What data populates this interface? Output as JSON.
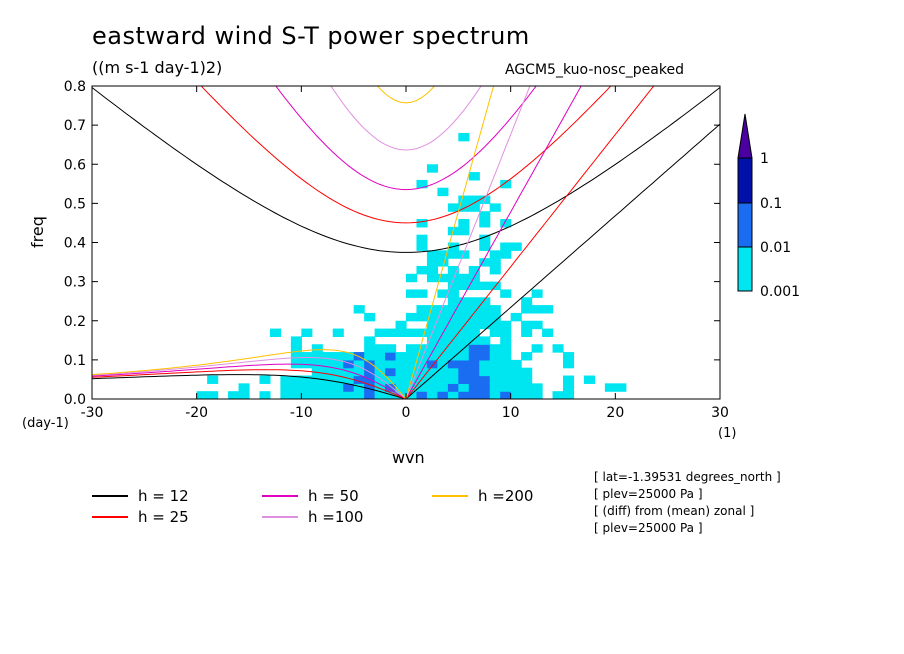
{
  "chart_data": {
    "type": "contour",
    "title": "eastward wind S-T power spectrum",
    "subtitle": "((m s-1 day-1)2)",
    "model_label": "AGCM5_kuo-nosc_peaked",
    "xlabel": "wvn",
    "ylabel": "freq",
    "x_unit": "(1)",
    "y_unit": "(day-1)",
    "xlim": [
      -30,
      30
    ],
    "ylim": [
      0,
      0.8
    ],
    "x_ticks": [
      -30,
      -20,
      -10,
      0,
      10,
      20,
      30
    ],
    "y_ticks": [
      0.0,
      0.1,
      0.2,
      0.3,
      0.4,
      0.5,
      0.6,
      0.7,
      0.8
    ],
    "x_tick_labels": [
      "-30",
      "-20",
      "-10",
      "0",
      "10",
      "20",
      "30"
    ],
    "y_tick_labels": [
      "0.0",
      "0.1",
      "0.2",
      "0.3",
      "0.4",
      "0.5",
      "0.6",
      "0.7",
      "0.8"
    ],
    "contour_levels": [
      0.001,
      0.01,
      0.1,
      1
    ],
    "colorbar_labels": [
      "1",
      "0.1",
      "0.01",
      "0.001"
    ],
    "colorbar_colors": [
      "#4a00a0",
      "#0010a8",
      "#1a6cf0",
      "#00e6f0"
    ],
    "dispersion_curves": [
      {
        "name": "h = 12",
        "equivalent_depth": 12,
        "color": "#000000"
      },
      {
        "name": "h = 25",
        "equivalent_depth": 25,
        "color": "#ff0000"
      },
      {
        "name": "h = 50",
        "equivalent_depth": 50,
        "color": "#e000c0"
      },
      {
        "name": "h =100",
        "equivalent_depth": 100,
        "color": "#e090e0"
      },
      {
        "name": "h =200",
        "equivalent_depth": 200,
        "color": "#ffc000"
      }
    ]
  },
  "info_lines": [
    "[ lat=-1.39531 degrees_north ]",
    "[ plev=25000 Pa ]",
    "[ (diff) from (mean) zonal ]",
    "[ plev=25000 Pa ]"
  ]
}
